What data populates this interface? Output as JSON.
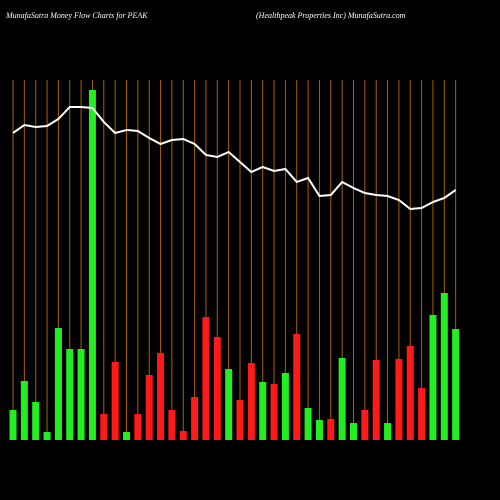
{
  "chart_data": {
    "type": "bar",
    "title": "MunafaSutra  Money Flow  Charts for PEAK",
    "subtitle": "(Healthpeak Properties Inc) MunafaSutra.com",
    "values": [
      30,
      59,
      38,
      8,
      112,
      91,
      91,
      350,
      26,
      78,
      8,
      26,
      65,
      87,
      30,
      9,
      43,
      123,
      103,
      71,
      40,
      77,
      58,
      56,
      67,
      106,
      32,
      20,
      21,
      82,
      17,
      30,
      80,
      17,
      81,
      94,
      52,
      125,
      147,
      111
    ],
    "colors": [
      "#22ee22",
      "#22ee22",
      "#22ee22",
      "#22ee22",
      "#22ee22",
      "#22ee22",
      "#22ee22",
      "#22ee22",
      "#ff1a1a",
      "#ff1a1a",
      "#22ee22",
      "#ff1a1a",
      "#ff1a1a",
      "#ff1a1a",
      "#ff1a1a",
      "#ff1a1a",
      "#ff1a1a",
      "#ff1a1a",
      "#ff1a1a",
      "#22ee22",
      "#ff1a1a",
      "#ff1a1a",
      "#22ee22",
      "#ff1a1a",
      "#22ee22",
      "#ff1a1a",
      "#22ee22",
      "#22ee22",
      "#ff1a1a",
      "#22ee22",
      "#22ee22",
      "#ff1a1a",
      "#ff1a1a",
      "#22ee22",
      "#ff1a1a",
      "#ff1a1a",
      "#ff1a1a",
      "#22ee22",
      "#22ee22",
      "#22ee22"
    ],
    "line_values": [
      307,
      315,
      313,
      314,
      321,
      333,
      333,
      332,
      318,
      307,
      310,
      309,
      302,
      296,
      300,
      301,
      296,
      285,
      283,
      288,
      278,
      268,
      273,
      269,
      271,
      258,
      262,
      244,
      245,
      258,
      252,
      247,
      245,
      244,
      240,
      231,
      232,
      238,
      242,
      250
    ],
    "line_color": "#ffffff",
    "ylim": [
      0,
      360
    ]
  }
}
